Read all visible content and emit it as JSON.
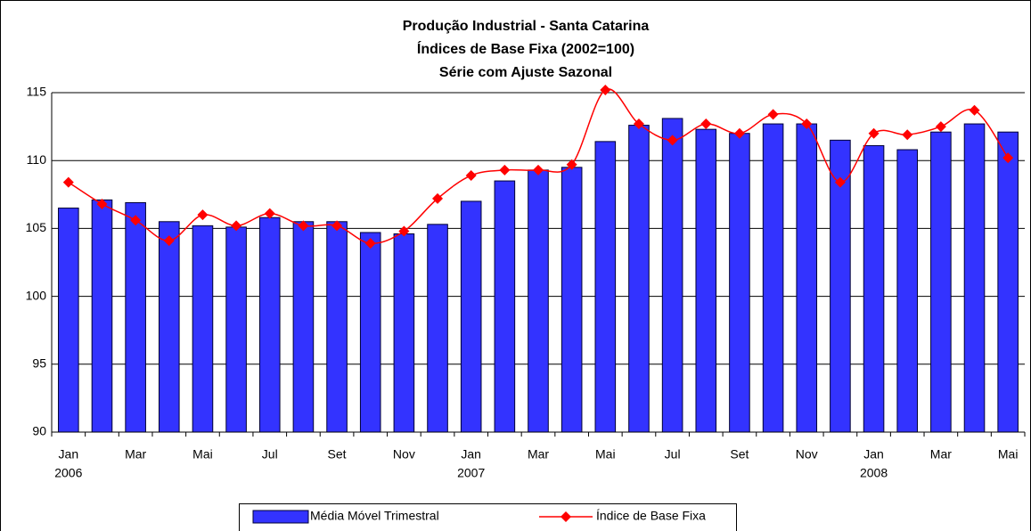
{
  "chart_data": {
    "type": "bar-line",
    "title": [
      "Produção Industrial - Santa Catarina",
      "Índices de Base Fixa (2002=100)",
      "Série com Ajuste Sazonal"
    ],
    "categories": [
      "Jan",
      null,
      "Mar",
      null,
      "Mai",
      null,
      "Jul",
      null,
      "Set",
      null,
      "Nov",
      null,
      "Jan",
      null,
      "Mar",
      null,
      "Mai",
      null,
      "Jul",
      null,
      "Set",
      null,
      "Nov",
      null,
      "Jan",
      null,
      "Mar",
      null,
      "Mai"
    ],
    "category_years": [
      "2006",
      null,
      null,
      null,
      null,
      null,
      null,
      null,
      null,
      null,
      null,
      null,
      "2007",
      null,
      null,
      null,
      null,
      null,
      null,
      null,
      null,
      null,
      null,
      null,
      "2008",
      null,
      null,
      null,
      null
    ],
    "series": [
      {
        "name": "Média Móvel Trimestral",
        "type": "bar",
        "color": "#3333ff",
        "values": [
          106.5,
          107.1,
          106.9,
          105.5,
          105.2,
          105.1,
          105.8,
          105.5,
          105.5,
          104.7,
          104.6,
          105.3,
          107.0,
          108.5,
          109.3,
          109.5,
          111.4,
          112.6,
          113.1,
          112.3,
          112.0,
          112.7,
          112.7,
          111.5,
          111.1,
          110.8,
          112.1,
          112.7,
          112.1
        ]
      },
      {
        "name": "Índice de Base Fixa",
        "type": "line",
        "color": "#ff0000",
        "values": [
          108.4,
          106.8,
          105.6,
          104.1,
          106.0,
          105.2,
          106.1,
          105.2,
          105.2,
          103.9,
          104.8,
          107.2,
          108.9,
          109.3,
          109.3,
          109.7,
          115.2,
          112.7,
          111.5,
          112.7,
          112.0,
          113.4,
          112.7,
          108.4,
          112.0,
          111.9,
          112.5,
          113.7,
          110.2
        ]
      }
    ],
    "ylim": [
      90,
      115
    ],
    "yticks": [
      90,
      95,
      100,
      105,
      110,
      115
    ],
    "grid": true,
    "legend": "bottom"
  }
}
